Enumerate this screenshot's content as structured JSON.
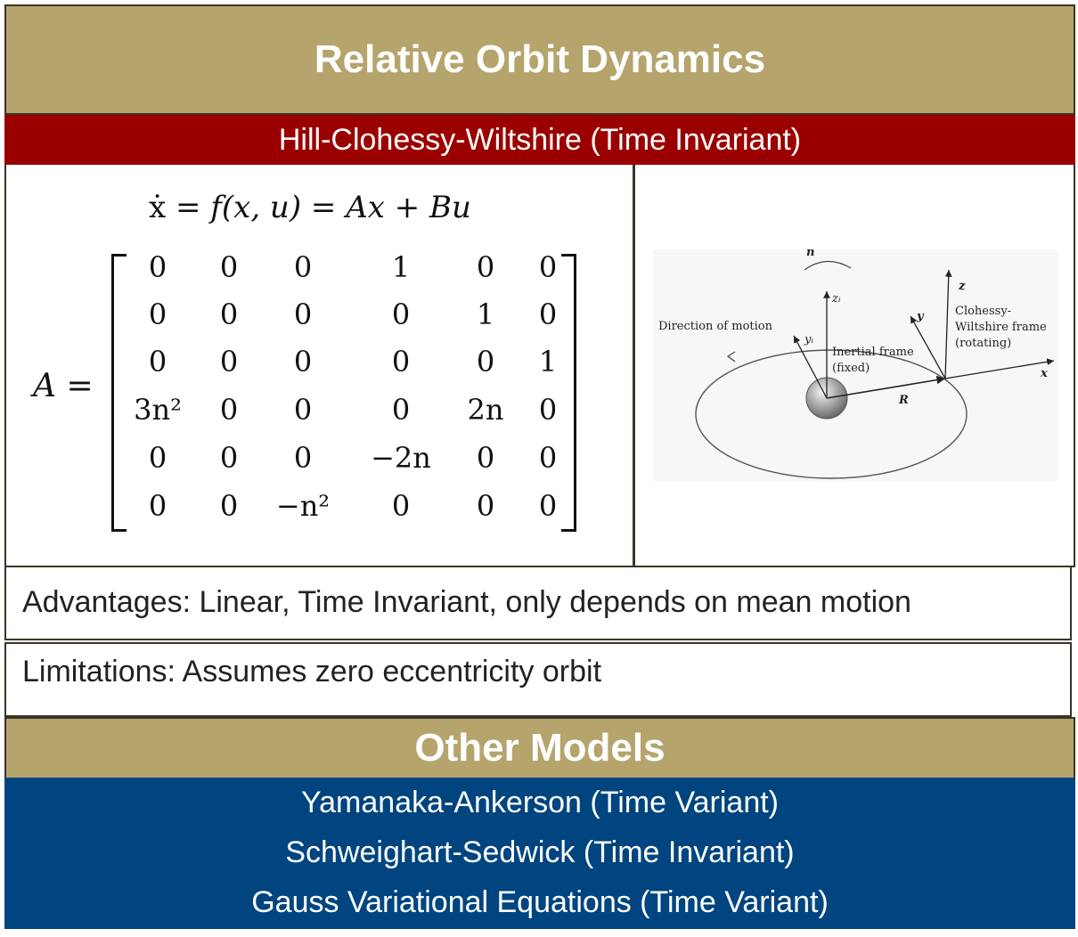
{
  "header": {
    "title": "Relative Orbit Dynamics",
    "subtitle": "Hill-Clohessy-Wiltshire (Time Invariant)"
  },
  "equation": {
    "state": "ẋ",
    "rest": " = f(x, u) = Ax + Bu",
    "matrix_name": "A",
    "matrix_rows": [
      [
        "0",
        "0",
        "0",
        "1",
        "0",
        "0"
      ],
      [
        "0",
        "0",
        "0",
        "0",
        "1",
        "0"
      ],
      [
        "0",
        "0",
        "0",
        "0",
        "0",
        "1"
      ],
      [
        "3n²",
        "0",
        "0",
        "0",
        "2n",
        "0"
      ],
      [
        "0",
        "0",
        "0",
        "−2n",
        "0",
        "0"
      ],
      [
        "0",
        "0",
        "−n²",
        "0",
        "0",
        "0"
      ]
    ]
  },
  "diagram": {
    "labels": {
      "n": "n",
      "zi": "zᵢ",
      "direction": "Direction of motion",
      "yi": "yᵢ",
      "inertial1": "Inertial frame",
      "inertial2": "(fixed)",
      "y": "y",
      "z": "z",
      "cw1": "Clohessy-",
      "cw2": "Wiltshire frame",
      "cw3": "(rotating)",
      "x": "x",
      "R": "R"
    }
  },
  "notes": {
    "advantages": "Advantages: Linear, Time Invariant, only depends on mean motion",
    "limitations": "Limitations: Assumes zero eccentricity orbit"
  },
  "other": {
    "title": "Other Models",
    "models": [
      "Yamanaka-Ankerson (Time Variant)",
      "Schweighart-Sedwick (Time Invariant)",
      "Gauss Variational Equations (Time Variant)"
    ]
  }
}
